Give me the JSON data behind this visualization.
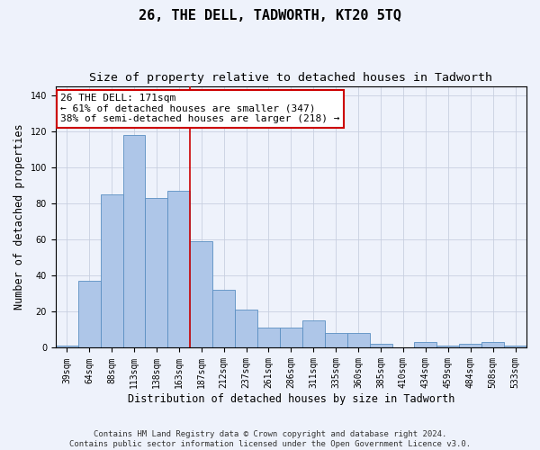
{
  "title": "26, THE DELL, TADWORTH, KT20 5TQ",
  "subtitle": "Size of property relative to detached houses in Tadworth",
  "xlabel": "Distribution of detached houses by size in Tadworth",
  "ylabel": "Number of detached properties",
  "categories": [
    "39sqm",
    "64sqm",
    "88sqm",
    "113sqm",
    "138sqm",
    "163sqm",
    "187sqm",
    "212sqm",
    "237sqm",
    "261sqm",
    "286sqm",
    "311sqm",
    "335sqm",
    "360sqm",
    "385sqm",
    "410sqm",
    "434sqm",
    "459sqm",
    "484sqm",
    "508sqm",
    "533sqm"
  ],
  "values": [
    1,
    37,
    85,
    118,
    83,
    87,
    59,
    32,
    21,
    11,
    11,
    15,
    8,
    8,
    2,
    0,
    3,
    1,
    2,
    3,
    1
  ],
  "bar_color": "#aec6e8",
  "bar_edge_color": "#5a8fc2",
  "vertical_line_x": 5.5,
  "vertical_line_color": "#cc0000",
  "annotation_text": "26 THE DELL: 171sqm\n← 61% of detached houses are smaller (347)\n38% of semi-detached houses are larger (218) →",
  "annotation_box_color": "#ffffff",
  "annotation_box_edge_color": "#cc0000",
  "ylim": [
    0,
    145
  ],
  "yticks": [
    0,
    20,
    40,
    60,
    80,
    100,
    120,
    140
  ],
  "background_color": "#eef2fb",
  "footer_text": "Contains HM Land Registry data © Crown copyright and database right 2024.\nContains public sector information licensed under the Open Government Licence v3.0.",
  "title_fontsize": 11,
  "subtitle_fontsize": 9.5,
  "xlabel_fontsize": 8.5,
  "ylabel_fontsize": 8.5,
  "tick_fontsize": 7,
  "annotation_fontsize": 8,
  "footer_fontsize": 6.5
}
